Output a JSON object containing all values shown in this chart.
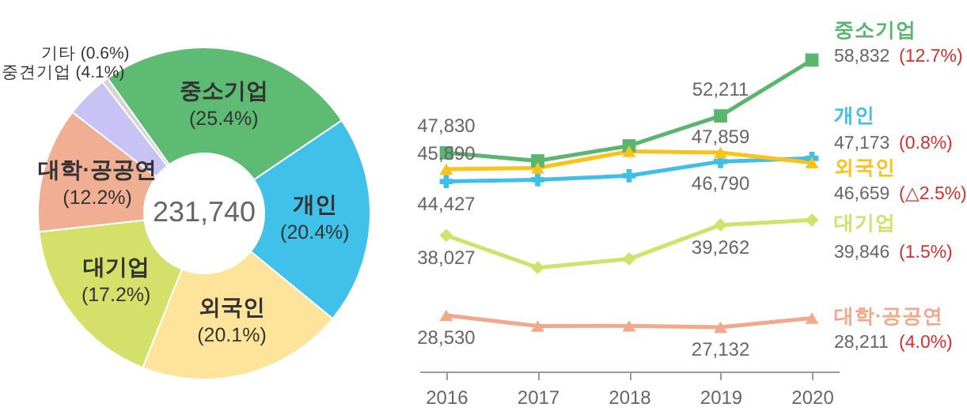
{
  "chart_data": [
    {
      "type": "donut",
      "categories": [
        "중소기업",
        "개인",
        "외국인",
        "대기업",
        "대학·공공연",
        "중견기업",
        "기타"
      ],
      "values": [
        25.4,
        20.4,
        20.1,
        17.2,
        12.2,
        4.1,
        0.6
      ],
      "colors": [
        "#5dbb74",
        "#3fc1ea",
        "#fde49a",
        "#d4e06a",
        "#f0ae92",
        "#c9c3f5",
        "#d4d4d4"
      ],
      "value_labels": [
        "(25.4%)",
        "(20.4%)",
        "(20.1%)",
        "(17.2%)",
        "(12.2%)",
        "(4.1%)",
        "(0.6%)"
      ],
      "annotations": [
        "231,740"
      ],
      "legend": false
    },
    {
      "type": "line",
      "categories": [
        "2016",
        "2017",
        "2018",
        "2019",
        "2020"
      ],
      "series": [
        {
          "name": "중소기업",
          "color": "#5ab56e",
          "marker": "square",
          "values": [
            47830,
            46870,
            48660,
            52211,
            58832
          ],
          "value_labels": [
            "47,830",
            null,
            null,
            "52,211",
            "58,832"
          ]
        },
        {
          "name": "개인",
          "color": "#3fbfe8",
          "marker": "cross",
          "values": [
            44427,
            44630,
            45110,
            46790,
            47173
          ],
          "value_labels": [
            "44,427",
            null,
            null,
            "46,790",
            "47,173"
          ]
        },
        {
          "name": "외국인",
          "color": "#fbc21a",
          "marker": "triangle",
          "values": [
            45890,
            46030,
            48000,
            47859,
            46659
          ],
          "value_labels": [
            "45,890",
            null,
            null,
            "47,859",
            "46,659"
          ]
        },
        {
          "name": "대기업",
          "color": "#cde36a",
          "marker": "diamond",
          "values": [
            38027,
            34200,
            35240,
            39262,
            39846
          ],
          "value_labels": [
            "38,027",
            null,
            null,
            "39,262",
            "39,846"
          ]
        },
        {
          "name": "대학·공공연",
          "color": "#f2a88a",
          "marker": "triangle",
          "values": [
            28530,
            27280,
            27300,
            27132,
            28211
          ],
          "value_labels": [
            "28,530",
            null,
            null,
            "27,132",
            "28,211"
          ]
        }
      ],
      "annotations": [
        "(12.7%)",
        "(0.8%)",
        "(△2.5%)",
        "(1.5%)",
        "(4.0%)"
      ],
      "tick_labels": "x",
      "grid": false,
      "legend": false,
      "line_style": "solid"
    }
  ]
}
